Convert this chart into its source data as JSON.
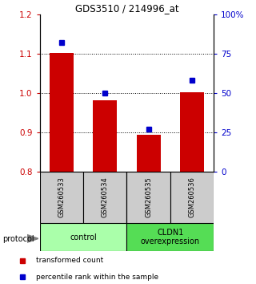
{
  "title": "GDS3510 / 214996_at",
  "samples": [
    "GSM260533",
    "GSM260534",
    "GSM260535",
    "GSM260536"
  ],
  "transformed_counts": [
    1.102,
    0.982,
    0.895,
    1.002
  ],
  "percentile_ranks": [
    82,
    50,
    27,
    58
  ],
  "ylim_left": [
    0.8,
    1.2
  ],
  "ylim_right": [
    0,
    100
  ],
  "yticks_left": [
    0.8,
    0.9,
    1.0,
    1.1,
    1.2
  ],
  "yticks_right": [
    0,
    25,
    50,
    75,
    100
  ],
  "ytick_labels_right": [
    "0",
    "25",
    "50",
    "75",
    "100%"
  ],
  "hlines": [
    0.9,
    1.0,
    1.1
  ],
  "bar_color": "#cc0000",
  "marker_color": "#0000cc",
  "groups": [
    {
      "label": "control",
      "indices": [
        0,
        1
      ],
      "color": "#aaffaa"
    },
    {
      "label": "CLDN1\noverexpression",
      "indices": [
        2,
        3
      ],
      "color": "#55dd55"
    }
  ],
  "protocol_label": "protocol",
  "legend_bar_label": "transformed count",
  "legend_marker_label": "percentile rank within the sample",
  "left_tick_color": "#cc0000",
  "right_tick_color": "#0000cc",
  "bar_width": 0.55,
  "sample_box_color": "#cccccc",
  "fig_bg": "#ffffff"
}
